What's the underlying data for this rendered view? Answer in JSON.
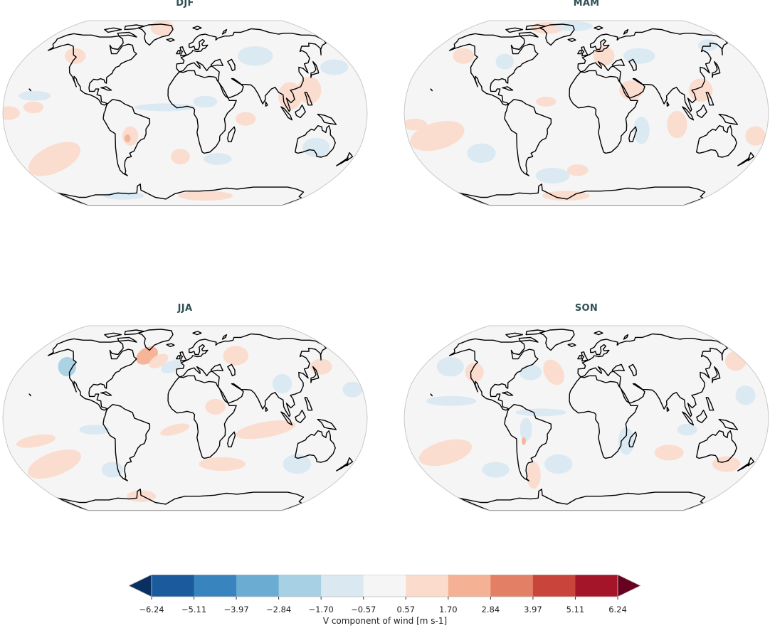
{
  "figure": {
    "colorbar_label": "V component of wind [m s-1]"
  },
  "chart_data": {
    "type": "heatmap",
    "title": "",
    "subplot_type": "filled contour maps (Robinson projection)",
    "variable": "V component of wind",
    "units": "m s-1",
    "panels": [
      {
        "title": "DJF",
        "position": "top-left"
      },
      {
        "title": "MAM",
        "position": "top-right"
      },
      {
        "title": "JJA",
        "position": "bottom-left"
      },
      {
        "title": "SON",
        "position": "bottom-right"
      }
    ],
    "colorbar": {
      "orientation": "horizontal",
      "extend": "both",
      "levels": [
        -6.24,
        -5.11,
        -3.97,
        -2.84,
        -1.7,
        -0.57,
        0.57,
        1.7,
        2.84,
        3.97,
        5.11,
        6.24
      ],
      "tick_labels": [
        "−6.24",
        "−5.11",
        "−3.97",
        "−2.84",
        "−1.70",
        "−0.57",
        "0.57",
        "1.70",
        "2.84",
        "3.97",
        "5.11",
        "6.24"
      ],
      "colors": [
        "#1b5a9c",
        "#3784bf",
        "#6badd2",
        "#a8d0e4",
        "#d9e8f1",
        "#f5f5f5",
        "#fbdbcc",
        "#f5b193",
        "#e27f65",
        "#c9443b",
        "#a4152a"
      ],
      "under_color": "#0a2f61",
      "over_color": "#68001f",
      "label": "V component of wind [m s-1]",
      "cmap": "RdBu_r"
    },
    "value_range_observed": "mostly between -1.70 and 1.70, with small local extremes near 2.84 over land"
  }
}
